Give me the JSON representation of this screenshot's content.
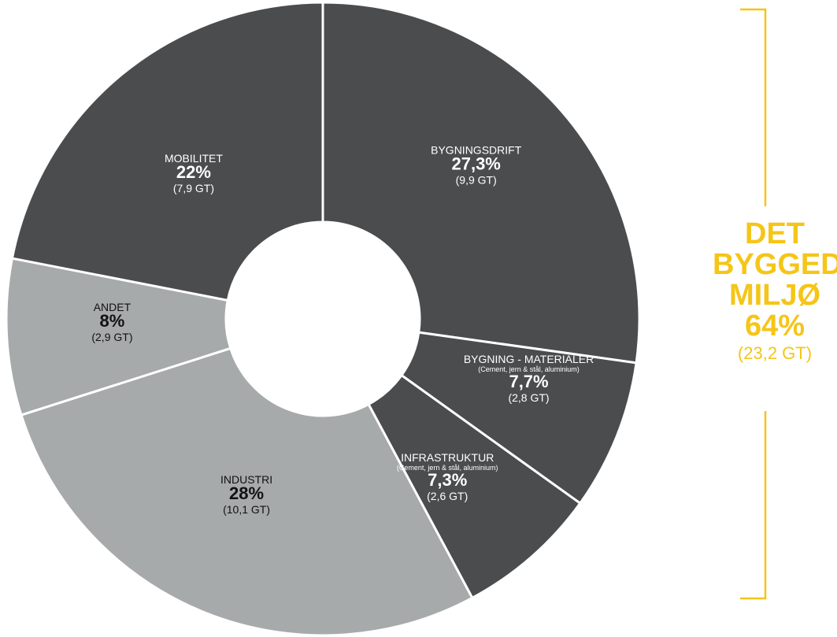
{
  "chart_data": {
    "type": "pie",
    "slices": [
      {
        "name": "BYGNINGSDRIFT",
        "sub": "",
        "pct_label": "27,3%",
        "value_label": "(9,9 GT)",
        "value": 27.3,
        "color": "#4a4c4e"
      },
      {
        "name": "BYGNING - MATERIALER",
        "sub": "(Cement, jern & stål, aluminium)",
        "pct_label": "7,7%",
        "value_label": "(2,8 GT)",
        "value": 7.7,
        "color": "#4a4c4e"
      },
      {
        "name": "INFRASTRUKTUR",
        "sub": "(Cement, jern & stål, aluminium)",
        "pct_label": "7,3%",
        "value_label": "(2,6 GT)",
        "value": 7.3,
        "color": "#4a4c4e"
      },
      {
        "name": "INDUSTRI",
        "sub": "",
        "pct_label": "28%",
        "value_label": "(10,1 GT)",
        "value": 28,
        "color": "#a7aaaa"
      },
      {
        "name": "ANDET",
        "sub": "",
        "pct_label": "8%",
        "value_label": "(2,9 GT)",
        "value": 8,
        "color": "#a7aaaa"
      },
      {
        "name": "MOBILITET",
        "sub": "",
        "pct_label": "22%",
        "value_label": "(7,9 GT)",
        "value": 22,
        "color": "#4a4c4e"
      }
    ],
    "group": {
      "title_lines": [
        "DET",
        "BYGGEDE",
        "MILJØ"
      ],
      "pct_label": "64%",
      "value_label": "(23,2 GT)",
      "color": "#f5c518"
    }
  }
}
